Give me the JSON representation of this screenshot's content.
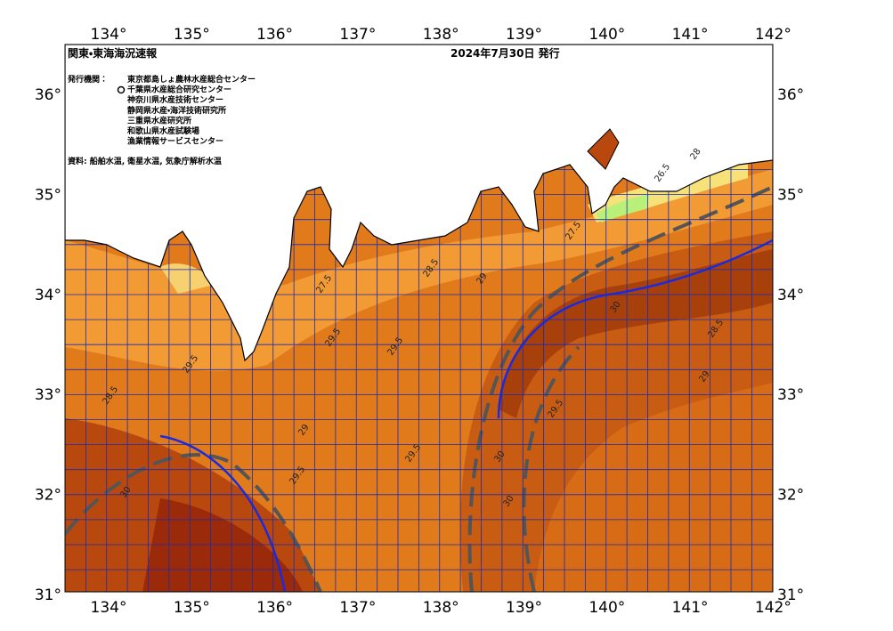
{
  "header": {
    "title": "関東・東海海況速報",
    "date": "2024年7月30日 発行"
  },
  "issuers": {
    "label": "発行機関：",
    "items": [
      "東京都島しょ農林水産総合センター",
      "千葉県水産総合研究センター",
      "神奈川県水産技術センター",
      "静岡県水産・海洋技術研究所",
      "三重県水産研究所",
      "和歌山県水産試験場",
      "漁業情報サービスセンター"
    ]
  },
  "source": "資料: 船舶水温, 衛星水温, 気象庁解析水温",
  "axes": {
    "longitudes": [
      "134°",
      "135°",
      "136°",
      "137°",
      "138°",
      "139°",
      "140°",
      "141°",
      "142°"
    ],
    "latitudes": [
      "36°",
      "35°",
      "34°",
      "33°",
      "32°",
      "31°"
    ]
  },
  "contour_labels": [
    "27.5",
    "28.5",
    "29",
    "29.5",
    "30",
    "29.5",
    "28.5",
    "29",
    "29.5",
    "30",
    "29.5",
    "28.5",
    "29",
    "29.5",
    "30",
    "28",
    "26.5",
    "27.5",
    "29.5",
    "30"
  ]
}
